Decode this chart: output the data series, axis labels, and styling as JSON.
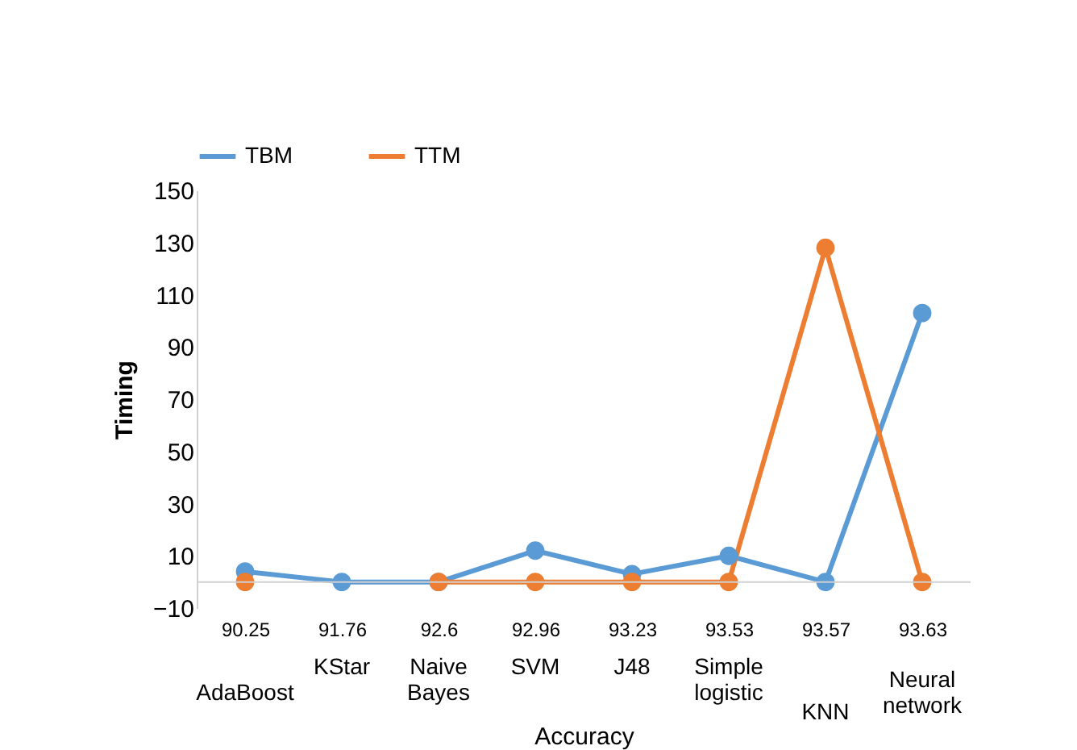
{
  "chart_data": {
    "type": "line",
    "xlabel": "Accuracy",
    "ylabel": "Timing",
    "categories": [
      "90.25",
      "91.76",
      "92.6",
      "92.96",
      "93.23",
      "93.53",
      "93.57",
      "93.63"
    ],
    "series": [
      {
        "name": "TBM",
        "color": "#5b9bd5",
        "values": [
          4,
          0,
          0,
          12,
          3,
          10,
          0,
          103
        ]
      },
      {
        "name": "TTM",
        "color": "#ed7d31",
        "values": [
          0,
          null,
          0,
          0,
          0,
          0,
          128,
          0
        ]
      }
    ],
    "annotations": [
      "AdaBoost",
      "KStar",
      "Naive Bayes",
      "SVM",
      "J48",
      "Simple logistic",
      "KNN",
      "Neural network"
    ],
    "ylim": [
      -10,
      150
    ],
    "yticks": [
      -10,
      10,
      30,
      50,
      70,
      90,
      110,
      130,
      150
    ],
    "marker": "circle",
    "line_style": "solid",
    "legend": "top",
    "grid": false
  }
}
